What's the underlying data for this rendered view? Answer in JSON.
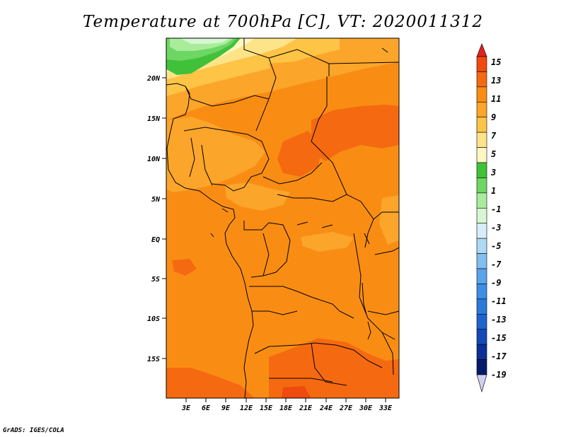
{
  "title": "Temperature at 700hPa [C], VT: 2020011312",
  "footer": "GrADS: IGES/COLA",
  "map": {
    "lat_labels": [
      "20N",
      "15N",
      "10N",
      "5N",
      "EQ",
      "5S",
      "10S",
      "15S"
    ],
    "lon_labels": [
      "3E",
      "6E",
      "9E",
      "12E",
      "15E",
      "18E",
      "21E",
      "24E",
      "27E",
      "30E",
      "33E"
    ]
  },
  "colorbar": {
    "labels": [
      "15",
      "13",
      "11",
      "9",
      "7",
      "5",
      "3",
      "1",
      "-1",
      "-3",
      "-5",
      "-7",
      "-9",
      "-11",
      "-13",
      "-15",
      "-17",
      "-19"
    ],
    "colors": [
      "#e0241f",
      "#f04a0f",
      "#f56a10",
      "#f98d13",
      "#fba52b",
      "#fdc446",
      "#fee489",
      "#fef7c2",
      "#41c13a",
      "#6ed663",
      "#a9ec9c",
      "#d6f7d2",
      "#d6eefa",
      "#aed8f6",
      "#82bff0",
      "#5ca4ea",
      "#3d8ee4",
      "#2c7ad9",
      "#1f64cd",
      "#1249b6",
      "#0b2f97",
      "#061a6a",
      "#cfd1ee"
    ]
  }
}
